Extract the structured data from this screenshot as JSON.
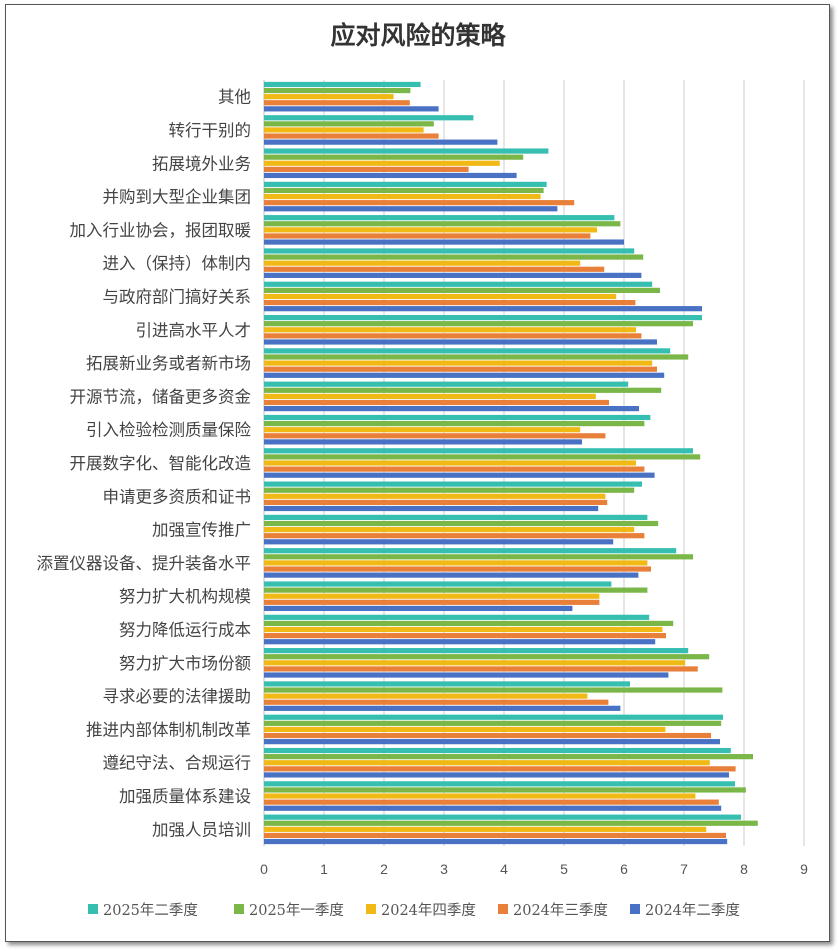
{
  "chart_data": {
    "type": "bar",
    "orientation": "horizontal",
    "title": "应对风险的策略",
    "categories": [
      "其他",
      "转行干别的",
      "拓展境外业务",
      "并购到大型企业集团",
      "加入行业协会，报团取暖",
      "进入（保持）体制内",
      "与政府部门搞好关系",
      "引进高水平人才",
      "拓展新业务或者新市场",
      "开源节流，储备更多资金",
      "引入检验检测质量保险",
      "开展数字化、智能化改造",
      "申请更多资质和证书",
      "加强宣传推广",
      "添置仪器设备、提升装备水平",
      "努力扩大机构规模",
      "努力降低运行成本",
      "努力扩大市场份额",
      "寻求必要的法律援助",
      "推进内部体制机制改革",
      "遵纪守法、合规运行",
      "加强质量体系建设",
      "加强人员培训"
    ],
    "series": [
      {
        "name": "2025年二季度",
        "color": "#36BFB0",
        "values": [
          2.61,
          3.49,
          4.74,
          4.71,
          5.84,
          6.17,
          6.47,
          7.3,
          6.77,
          6.07,
          6.44,
          7.15,
          6.3,
          6.39,
          6.87,
          5.79,
          6.42,
          7.07,
          6.1,
          7.65,
          7.78,
          7.85,
          7.95
        ]
      },
      {
        "name": "2025年一季度",
        "color": "#7AB648",
        "values": [
          2.44,
          2.83,
          4.32,
          4.66,
          5.94,
          6.32,
          6.6,
          7.15,
          7.07,
          6.62,
          6.34,
          7.27,
          6.17,
          6.57,
          7.15,
          6.39,
          6.82,
          7.42,
          7.64,
          7.62,
          8.15,
          8.03,
          8.23
        ]
      },
      {
        "name": "2024年四季度",
        "color": "#F0B916",
        "values": [
          2.16,
          2.66,
          3.93,
          4.61,
          5.55,
          5.27,
          5.87,
          6.2,
          6.47,
          5.53,
          5.27,
          6.2,
          5.69,
          6.17,
          6.39,
          5.59,
          6.64,
          7.02,
          5.39,
          6.69,
          7.43,
          7.19,
          7.37
        ]
      },
      {
        "name": "2024年三季度",
        "color": "#E8803A",
        "values": [
          2.43,
          2.91,
          3.41,
          5.17,
          5.44,
          5.67,
          6.19,
          6.29,
          6.55,
          5.75,
          5.69,
          6.34,
          5.72,
          6.34,
          6.45,
          5.59,
          6.7,
          7.23,
          5.74,
          7.45,
          7.86,
          7.58,
          7.7
        ]
      },
      {
        "name": "2024年二季度",
        "color": "#4A72C4",
        "values": [
          2.91,
          3.89,
          4.21,
          4.89,
          6.0,
          6.29,
          7.3,
          6.55,
          6.67,
          6.25,
          5.3,
          6.51,
          5.57,
          5.82,
          6.24,
          5.14,
          6.52,
          6.74,
          5.94,
          7.6,
          7.75,
          7.62,
          7.72
        ]
      }
    ],
    "xlim": [
      0,
      9
    ],
    "xticks": [
      "0",
      "1",
      "2",
      "3",
      "4",
      "5",
      "6",
      "7",
      "8",
      "9"
    ],
    "grid": true,
    "legend": "bottom"
  }
}
